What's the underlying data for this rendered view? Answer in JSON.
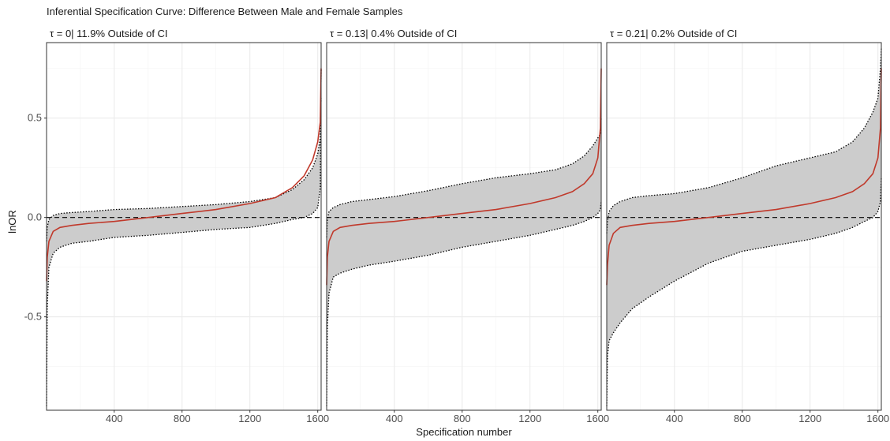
{
  "chart_data": {
    "type": "area",
    "title": "Inferential Specification Curve: Difference Between Male and Female Samples",
    "xlabel": "Specification number",
    "ylabel": "lnOR",
    "xlim": [
      1,
      1620
    ],
    "ylim": [
      -0.97,
      0.88
    ],
    "xticks": [
      400,
      800,
      1200,
      1600
    ],
    "xtick_labels": [
      "400",
      "800",
      "1200",
      "1600"
    ],
    "yticks": [
      -0.5,
      0.0,
      0.5
    ],
    "ytick_labels": [
      "-0.5",
      "0.0",
      "0.5"
    ],
    "reference_line": {
      "y": 0,
      "style": "dashed"
    },
    "grid": true,
    "colors": {
      "estimate": "#c0392b",
      "ci_fill": "#cccccc",
      "ci_bound": "#000000",
      "panel_border": "#333333",
      "grid": "#ebebeb"
    },
    "x_points": [
      1,
      5,
      15,
      40,
      80,
      150,
      250,
      400,
      600,
      800,
      1000,
      1200,
      1350,
      1450,
      1520,
      1570,
      1600,
      1615,
      1620
    ],
    "panels": [
      {
        "label": "τ = 0| 11.9% Outside of CI",
        "series": [
          {
            "name": "estimate",
            "values": [
              -0.32,
              -0.2,
              -0.12,
              -0.07,
              -0.05,
              -0.04,
              -0.03,
              -0.02,
              0.0,
              0.02,
              0.04,
              0.07,
              0.1,
              0.15,
              0.21,
              0.29,
              0.38,
              0.48,
              0.75
            ]
          },
          {
            "name": "upper",
            "values": [
              -0.12,
              -0.05,
              -0.01,
              0.01,
              0.02,
              0.025,
              0.03,
              0.04,
              0.045,
              0.055,
              0.065,
              0.08,
              0.1,
              0.14,
              0.19,
              0.25,
              0.32,
              0.4,
              0.6
            ]
          },
          {
            "name": "lower",
            "values": [
              -0.95,
              -0.45,
              -0.25,
              -0.18,
              -0.15,
              -0.13,
              -0.12,
              -0.1,
              -0.09,
              -0.075,
              -0.06,
              -0.05,
              -0.03,
              -0.01,
              0.0,
              0.02,
              0.05,
              0.15,
              0.75
            ]
          }
        ]
      },
      {
        "label": "τ = 0.13|  0.4% Outside of CI",
        "series": [
          {
            "name": "estimate",
            "values": [
              -0.34,
              -0.2,
              -0.12,
              -0.07,
              -0.05,
              -0.04,
              -0.03,
              -0.02,
              0.0,
              0.02,
              0.04,
              0.07,
              0.1,
              0.13,
              0.17,
              0.22,
              0.3,
              0.45,
              0.75
            ]
          },
          {
            "name": "upper",
            "values": [
              -0.1,
              -0.01,
              0.03,
              0.05,
              0.065,
              0.08,
              0.09,
              0.105,
              0.135,
              0.17,
              0.2,
              0.22,
              0.24,
              0.27,
              0.31,
              0.36,
              0.4,
              0.42,
              0.5
            ]
          },
          {
            "name": "lower",
            "values": [
              -0.95,
              -0.55,
              -0.38,
              -0.3,
              -0.28,
              -0.26,
              -0.24,
              -0.22,
              -0.19,
              -0.15,
              -0.12,
              -0.09,
              -0.06,
              -0.04,
              -0.02,
              0.0,
              0.02,
              0.04,
              0.08
            ]
          }
        ]
      },
      {
        "label": "τ = 0.21|  0.2% Outside of CI",
        "series": [
          {
            "name": "estimate",
            "values": [
              -0.34,
              -0.24,
              -0.14,
              -0.08,
              -0.05,
              -0.04,
              -0.03,
              -0.02,
              0.0,
              0.02,
              0.04,
              0.07,
              0.1,
              0.13,
              0.17,
              0.22,
              0.3,
              0.45,
              0.75
            ]
          },
          {
            "name": "upper",
            "values": [
              -0.08,
              -0.02,
              0.03,
              0.06,
              0.08,
              0.1,
              0.11,
              0.12,
              0.15,
              0.2,
              0.26,
              0.3,
              0.33,
              0.38,
              0.45,
              0.53,
              0.6,
              0.75,
              0.85
            ]
          },
          {
            "name": "lower",
            "values": [
              -0.95,
              -0.7,
              -0.62,
              -0.58,
              -0.53,
              -0.46,
              -0.4,
              -0.32,
              -0.23,
              -0.17,
              -0.14,
              -0.11,
              -0.08,
              -0.05,
              -0.02,
              0.0,
              0.03,
              0.08,
              0.2
            ]
          }
        ]
      }
    ]
  }
}
